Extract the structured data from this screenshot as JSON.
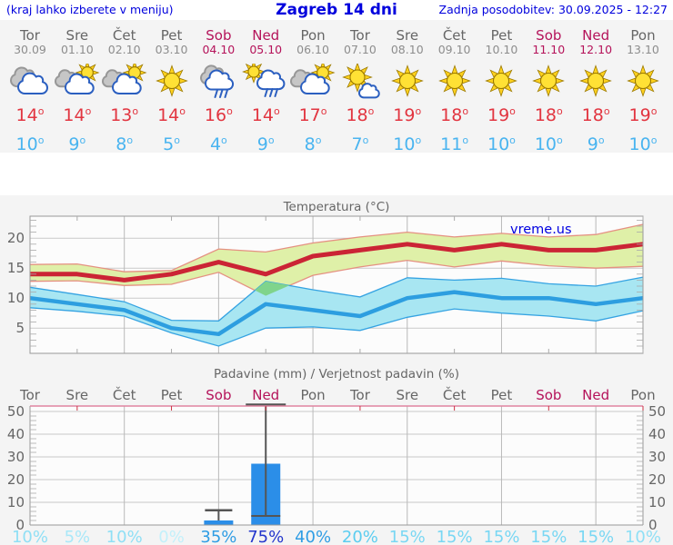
{
  "header": {
    "left": "(kraj lahko izberete v meniju)",
    "title": "Zagreb 14 dni",
    "right": "Zadnja posodobitev: 30.09.2025 - 12:27"
  },
  "colors": {
    "link_blue": "#0000dd",
    "weekend_red": "#b5135a",
    "tmax_red": "#e23540",
    "tmin_blue": "#49b4f0",
    "grid_gray": "#c9c9c9",
    "border_gray": "#999999",
    "strip_bg": "#f4f4f4",
    "plot_bg": "#fcfcfc"
  },
  "forecast": {
    "degree_symbol": "o",
    "days": [
      {
        "name": "Tor",
        "date": "30.09",
        "icon": "cloudy",
        "tmax": 14,
        "tmin": 10,
        "weekend": false
      },
      {
        "name": "Sre",
        "date": "01.10",
        "icon": "sun-cloud",
        "tmax": 14,
        "tmin": 9,
        "weekend": false
      },
      {
        "name": "Čet",
        "date": "02.10",
        "icon": "sun-cloud",
        "tmax": 13,
        "tmin": 8,
        "weekend": false
      },
      {
        "name": "Pet",
        "date": "03.10",
        "icon": "sunny",
        "tmax": 14,
        "tmin": 5,
        "weekend": false
      },
      {
        "name": "Sob",
        "date": "04.10",
        "icon": "rain",
        "tmax": 16,
        "tmin": 4,
        "weekend": true
      },
      {
        "name": "Ned",
        "date": "05.10",
        "icon": "sun-rain",
        "tmax": 14,
        "tmin": 9,
        "weekend": true
      },
      {
        "name": "Pon",
        "date": "06.10",
        "icon": "sun-cloud",
        "tmax": 17,
        "tmin": 8,
        "weekend": false
      },
      {
        "name": "Tor",
        "date": "07.10",
        "icon": "sunny-small-cloud",
        "tmax": 18,
        "tmin": 7,
        "weekend": false
      },
      {
        "name": "Sre",
        "date": "08.10",
        "icon": "sunny",
        "tmax": 19,
        "tmin": 10,
        "weekend": false
      },
      {
        "name": "Čet",
        "date": "09.10",
        "icon": "sunny",
        "tmax": 18,
        "tmin": 11,
        "weekend": false
      },
      {
        "name": "Pet",
        "date": "10.10",
        "icon": "sunny",
        "tmax": 19,
        "tmin": 10,
        "weekend": false
      },
      {
        "name": "Sob",
        "date": "11.10",
        "icon": "sunny",
        "tmax": 18,
        "tmin": 10,
        "weekend": true
      },
      {
        "name": "Ned",
        "date": "12.10",
        "icon": "sunny",
        "tmax": 18,
        "tmin": 9,
        "weekend": true
      },
      {
        "name": "Pon",
        "date": "13.10",
        "icon": "sunny",
        "tmax": 19,
        "tmin": 10,
        "weekend": false
      }
    ]
  },
  "chart_data": [
    {
      "type": "line",
      "title": "Temperatura (°C)",
      "watermark": "vreme.us",
      "x_labels": [
        "Tor",
        "Sre",
        "Čet",
        "Pet",
        "Sob",
        "Ned",
        "Pon",
        "Tor",
        "Sre",
        "Čet",
        "Pet",
        "Sob",
        "Ned",
        "Pon"
      ],
      "weekend_indices": [
        4,
        5,
        11,
        12
      ],
      "ylim": [
        1,
        23.5
      ],
      "yticks": [
        5,
        10,
        15,
        20
      ],
      "grid": {
        "vertical_gridlines_at_days": [
          2,
          4,
          6,
          8,
          10,
          12
        ],
        "minor_tick_step_deg": 1
      },
      "series": [
        {
          "name": "max-temperature",
          "color": "#cb2435",
          "values": [
            14,
            14,
            13,
            14,
            16,
            14,
            17,
            18,
            19,
            18,
            19,
            18,
            18,
            19
          ]
        },
        {
          "name": "min-temperature",
          "color": "#2d9ee0",
          "values": [
            10,
            9,
            8,
            5,
            4,
            9,
            8,
            7,
            10,
            11,
            10,
            10,
            9,
            10
          ]
        }
      ],
      "bands": [
        {
          "name": "max-temperature-range",
          "fill": "#dff0a8",
          "stroke": "#e59182",
          "upper": [
            15.6,
            15.7,
            14.4,
            14.6,
            18.2,
            17.7,
            19.2,
            20.2,
            21.0,
            20.2,
            20.8,
            20.2,
            20.6,
            22.3
          ],
          "lower": [
            12.8,
            12.9,
            12.1,
            12.3,
            14.3,
            10.4,
            13.8,
            15.2,
            16.3,
            15.2,
            16.2,
            15.4,
            15.0,
            15.3
          ]
        },
        {
          "name": "min-temperature-range",
          "fill": "#a8e6f2",
          "stroke": "#35a3e2",
          "upper": [
            11.8,
            10.6,
            9.4,
            6.3,
            6.2,
            12.8,
            11.4,
            10.2,
            13.4,
            13.0,
            13.3,
            12.4,
            12.0,
            13.5
          ],
          "lower": [
            8.4,
            7.8,
            7.0,
            4.2,
            2.0,
            5.0,
            5.2,
            4.6,
            6.8,
            8.2,
            7.5,
            7.0,
            6.2,
            7.9
          ]
        }
      ],
      "overlap": {
        "fill": "#7fd48c",
        "points": [
          [
            4.77,
            11.3
          ],
          [
            5,
            12.8
          ],
          [
            5.5,
            12.1
          ],
          [
            5,
            10.4
          ]
        ]
      }
    },
    {
      "type": "bar",
      "title": "Padavine (mm) / Verjetnost padavin (%)",
      "categories": [
        "Tor",
        "Sre",
        "Čet",
        "Pet",
        "Sob",
        "Ned",
        "Pon",
        "Tor",
        "Sre",
        "Čet",
        "Pet",
        "Sob",
        "Ned",
        "Pon"
      ],
      "weekend_indices": [
        4,
        5,
        11,
        12
      ],
      "ylim": [
        0,
        52
      ],
      "yticks": [
        0,
        10,
        20,
        30,
        40,
        50
      ],
      "bar_color": "#2b8ee8",
      "whisker_color": "#555555",
      "bars": [
        {
          "day_index": 4,
          "precip_mm": 2,
          "whisker_max_mm": 6.5
        },
        {
          "day_index": 5,
          "precip_mm": 27,
          "whisker_max_mm": 53,
          "median_mm": 4
        }
      ],
      "probabilities": [
        {
          "label": "10%",
          "color": "#8fdff5"
        },
        {
          "label": "5%",
          "color": "#a9e8f8"
        },
        {
          "label": "10%",
          "color": "#8fdff5"
        },
        {
          "label": "0%",
          "color": "#c3f0fa"
        },
        {
          "label": "35%",
          "color": "#2f9de4"
        },
        {
          "label": "75%",
          "color": "#2336cc"
        },
        {
          "label": "40%",
          "color": "#2f9de4"
        },
        {
          "label": "20%",
          "color": "#5bcdf0"
        },
        {
          "label": "15%",
          "color": "#79d7f3"
        },
        {
          "label": "15%",
          "color": "#79d7f3"
        },
        {
          "label": "15%",
          "color": "#79d7f3"
        },
        {
          "label": "15%",
          "color": "#79d7f3"
        },
        {
          "label": "15%",
          "color": "#79d7f3"
        },
        {
          "label": "10%",
          "color": "#8fdff5"
        }
      ]
    }
  ]
}
